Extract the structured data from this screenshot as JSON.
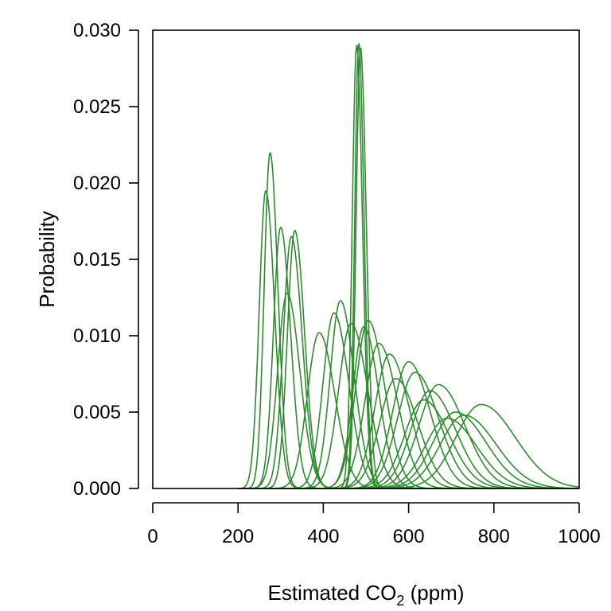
{
  "chart_data": {
    "type": "line",
    "title": "",
    "xlabel": {
      "pre": "Estimated CO",
      "sub": "2",
      "post": " (ppm)"
    },
    "ylabel": "Probability",
    "xlim": [
      0,
      1000
    ],
    "ylim": [
      0,
      0.03
    ],
    "xticks": [
      0,
      200,
      400,
      600,
      800,
      1000
    ],
    "xtick_labels": [
      "0",
      "200",
      "400",
      "600",
      "800",
      "1000"
    ],
    "yticks": [
      0,
      0.005,
      0.01,
      0.015,
      0.02,
      0.025,
      0.03
    ],
    "ytick_labels": [
      "0.000",
      "0.005",
      "0.010",
      "0.015",
      "0.020",
      "0.025",
      "0.030"
    ],
    "grid": false,
    "legend": "none",
    "color": "#2e8b2e",
    "series": [
      {
        "peak_x": 265,
        "peak_y": 0.0195,
        "sd": 18
      },
      {
        "peak_x": 275,
        "peak_y": 0.022,
        "sd": 16
      },
      {
        "peak_x": 300,
        "peak_y": 0.0171,
        "sd": 20
      },
      {
        "peak_x": 315,
        "peak_y": 0.0128,
        "sd": 26
      },
      {
        "peak_x": 325,
        "peak_y": 0.0165,
        "sd": 22
      },
      {
        "peak_x": 333,
        "peak_y": 0.0169,
        "sd": 20
      },
      {
        "peak_x": 390,
        "peak_y": 0.0102,
        "sd": 32
      },
      {
        "peak_x": 425,
        "peak_y": 0.0115,
        "sd": 30
      },
      {
        "peak_x": 440,
        "peak_y": 0.0123,
        "sd": 28
      },
      {
        "peak_x": 465,
        "peak_y": 0.0108,
        "sd": 34
      },
      {
        "peak_x": 478,
        "peak_y": 0.029,
        "sd": 12
      },
      {
        "peak_x": 483,
        "peak_y": 0.0292,
        "sd": 11
      },
      {
        "peak_x": 487,
        "peak_y": 0.0289,
        "sd": 12
      },
      {
        "peak_x": 495,
        "peak_y": 0.0106,
        "sd": 30
      },
      {
        "peak_x": 505,
        "peak_y": 0.011,
        "sd": 34
      },
      {
        "peak_x": 530,
        "peak_y": 0.0095,
        "sd": 38
      },
      {
        "peak_x": 555,
        "peak_y": 0.0088,
        "sd": 40
      },
      {
        "peak_x": 570,
        "peak_y": 0.0072,
        "sd": 44
      },
      {
        "peak_x": 600,
        "peak_y": 0.0083,
        "sd": 44
      },
      {
        "peak_x": 615,
        "peak_y": 0.0076,
        "sd": 48
      },
      {
        "peak_x": 635,
        "peak_y": 0.0058,
        "sd": 52
      },
      {
        "peak_x": 650,
        "peak_y": 0.0064,
        "sd": 52
      },
      {
        "peak_x": 670,
        "peak_y": 0.0068,
        "sd": 54
      },
      {
        "peak_x": 690,
        "peak_y": 0.0046,
        "sd": 60
      },
      {
        "peak_x": 710,
        "peak_y": 0.005,
        "sd": 62
      },
      {
        "peak_x": 730,
        "peak_y": 0.0048,
        "sd": 65
      },
      {
        "peak_x": 770,
        "peak_y": 0.0055,
        "sd": 70
      }
    ]
  }
}
